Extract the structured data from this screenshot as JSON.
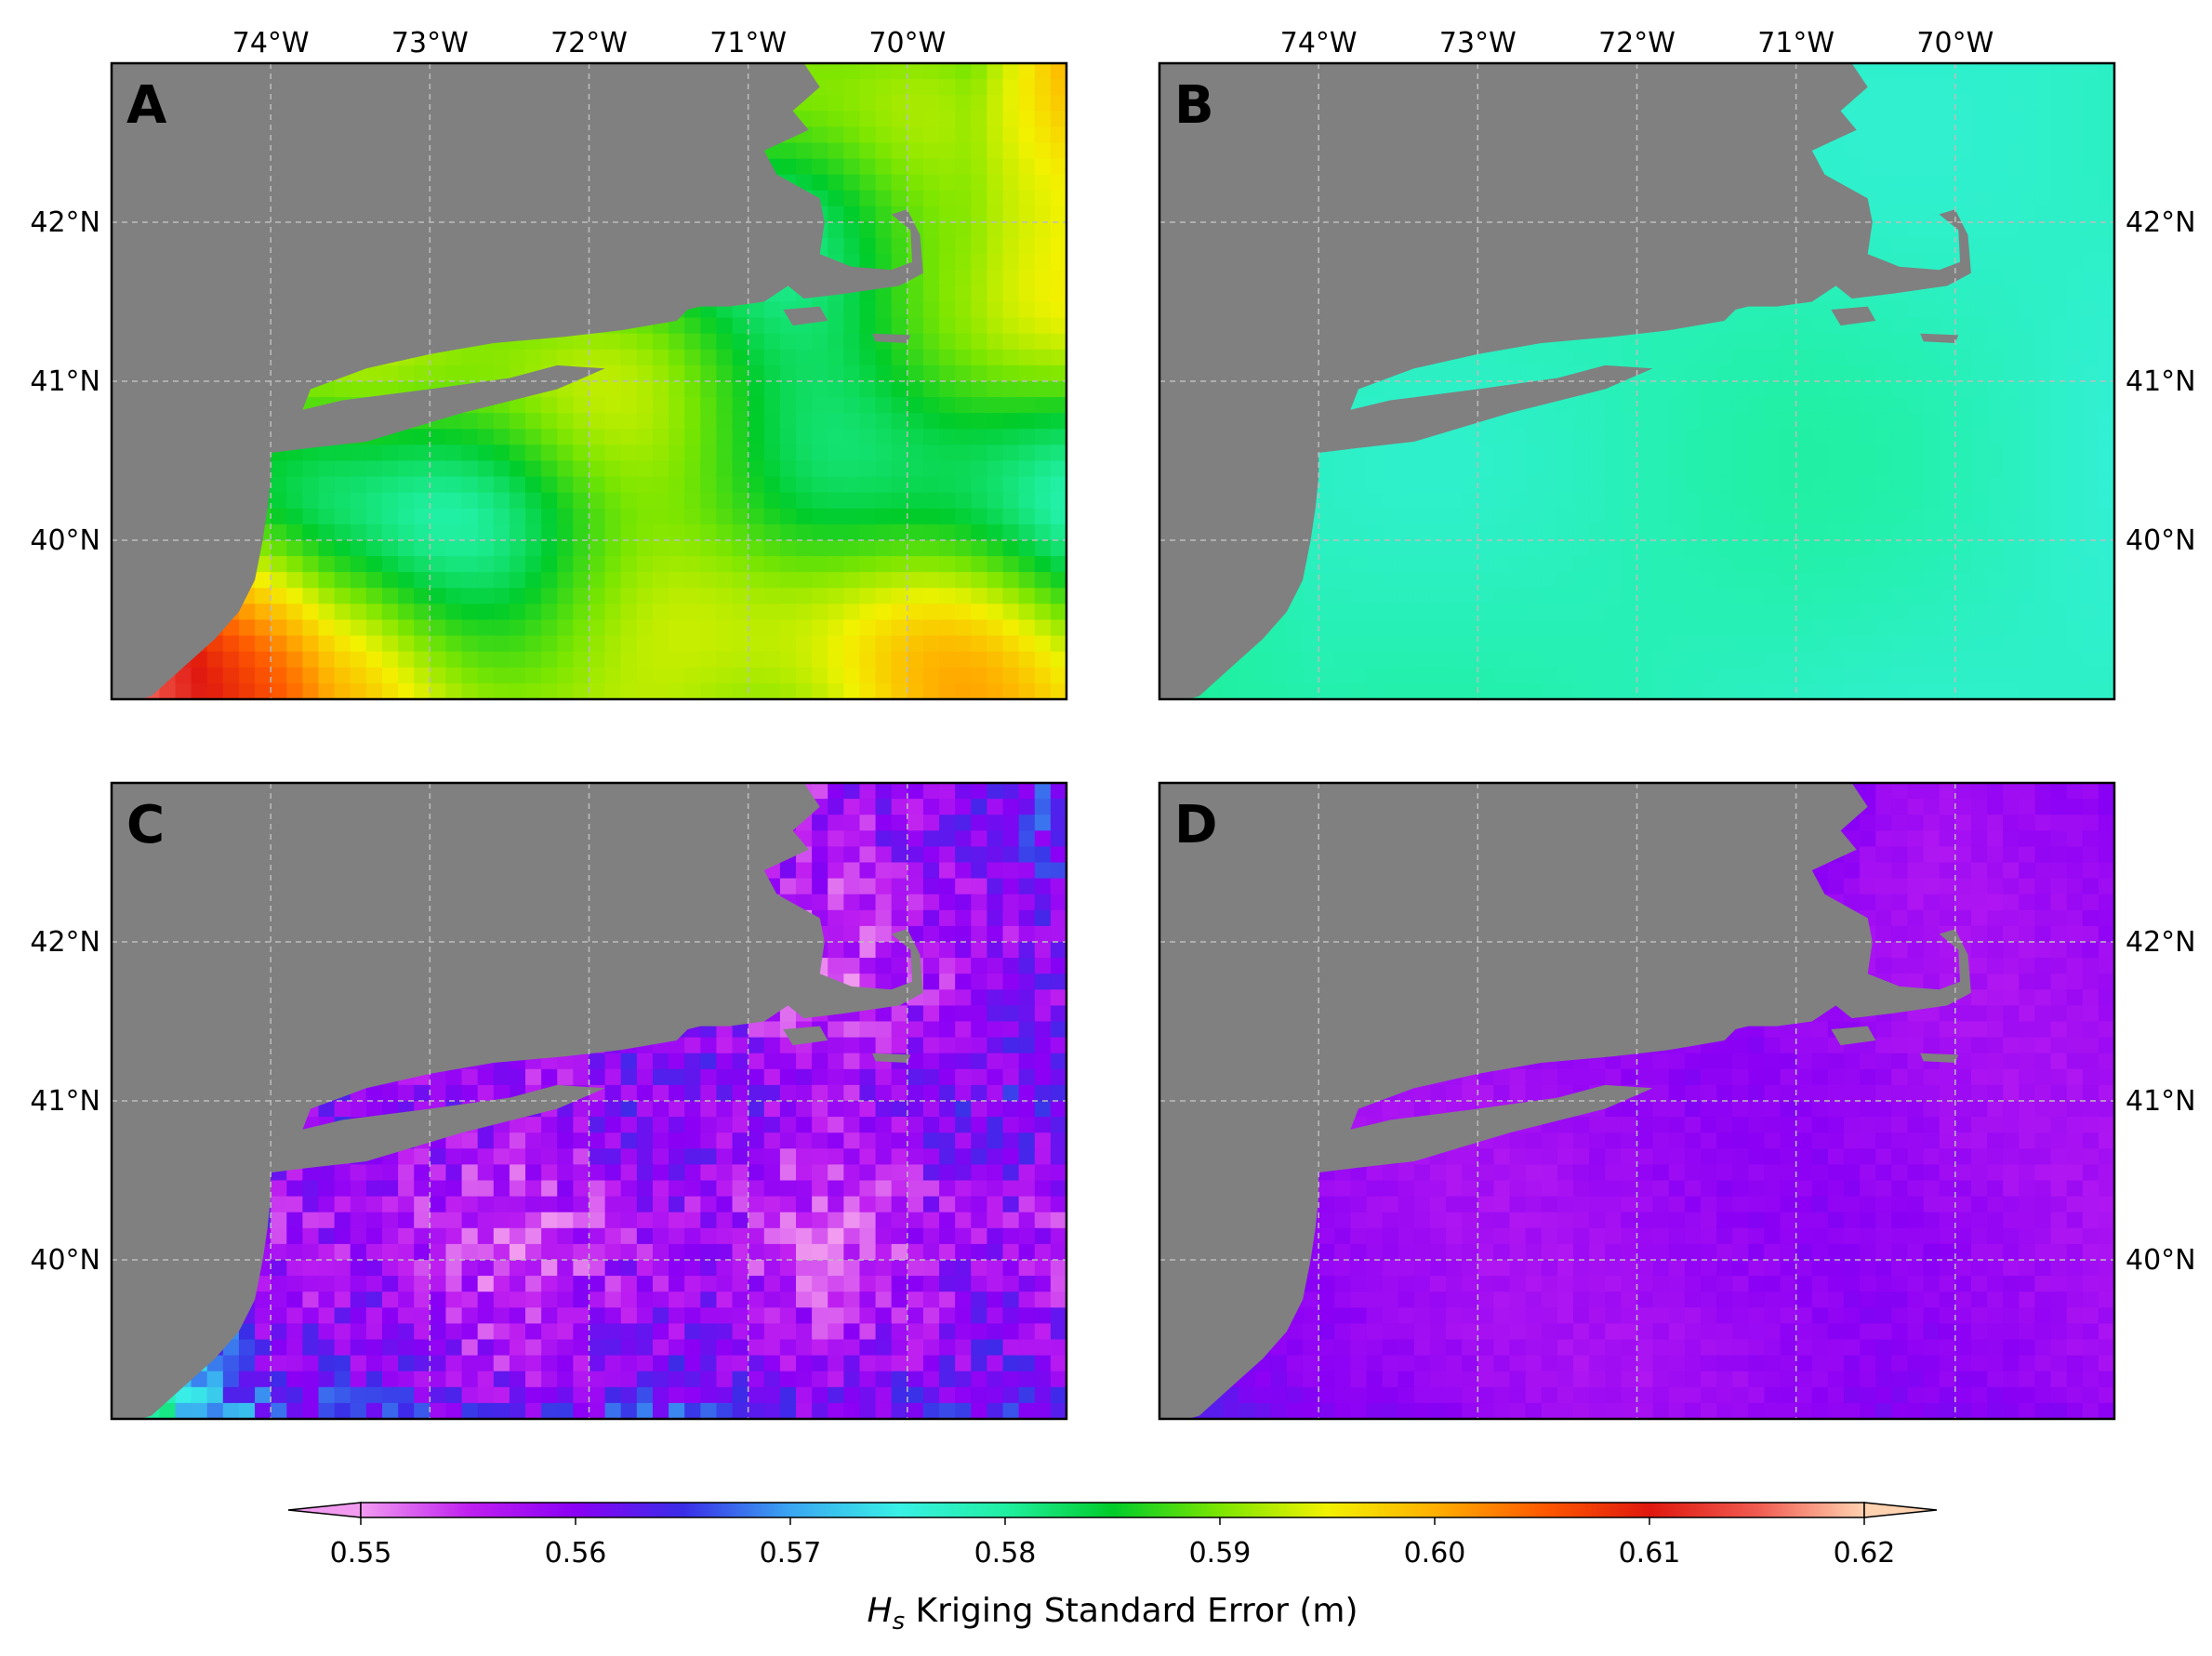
{
  "figure": {
    "colorbar": {
      "label_symbol": "H",
      "label_subscript": "s",
      "label_text": " Kriging Standard Error (m)",
      "min": 0.55,
      "max": 0.62,
      "ticks": [
        "0.55",
        "0.56",
        "0.57",
        "0.58",
        "0.59",
        "0.60",
        "0.61",
        "0.62"
      ],
      "extend": "both",
      "colormap": [
        "#f29bf0",
        "#c020f0",
        "#8a00f5",
        "#3a2de8",
        "#3aa6f2",
        "#38f0e6",
        "#20f0a2",
        "#00cc2a",
        "#7ce600",
        "#f2f200",
        "#ffb000",
        "#ff5a00",
        "#e0180e",
        "#f05a50",
        "#ffd2b0"
      ]
    },
    "panels": [
      {
        "letter": "A",
        "field": "A"
      },
      {
        "letter": "B",
        "field": "B"
      },
      {
        "letter": "C",
        "field": "C"
      },
      {
        "letter": "D",
        "field": "D"
      }
    ],
    "lon_labels": [
      "74°W",
      "73°W",
      "72°W",
      "71°W",
      "70°W"
    ],
    "lat_labels": [
      "42°N",
      "41°N",
      "40°N"
    ],
    "land_color": "#808080",
    "gridline_color": "#bdbdbd"
  }
}
